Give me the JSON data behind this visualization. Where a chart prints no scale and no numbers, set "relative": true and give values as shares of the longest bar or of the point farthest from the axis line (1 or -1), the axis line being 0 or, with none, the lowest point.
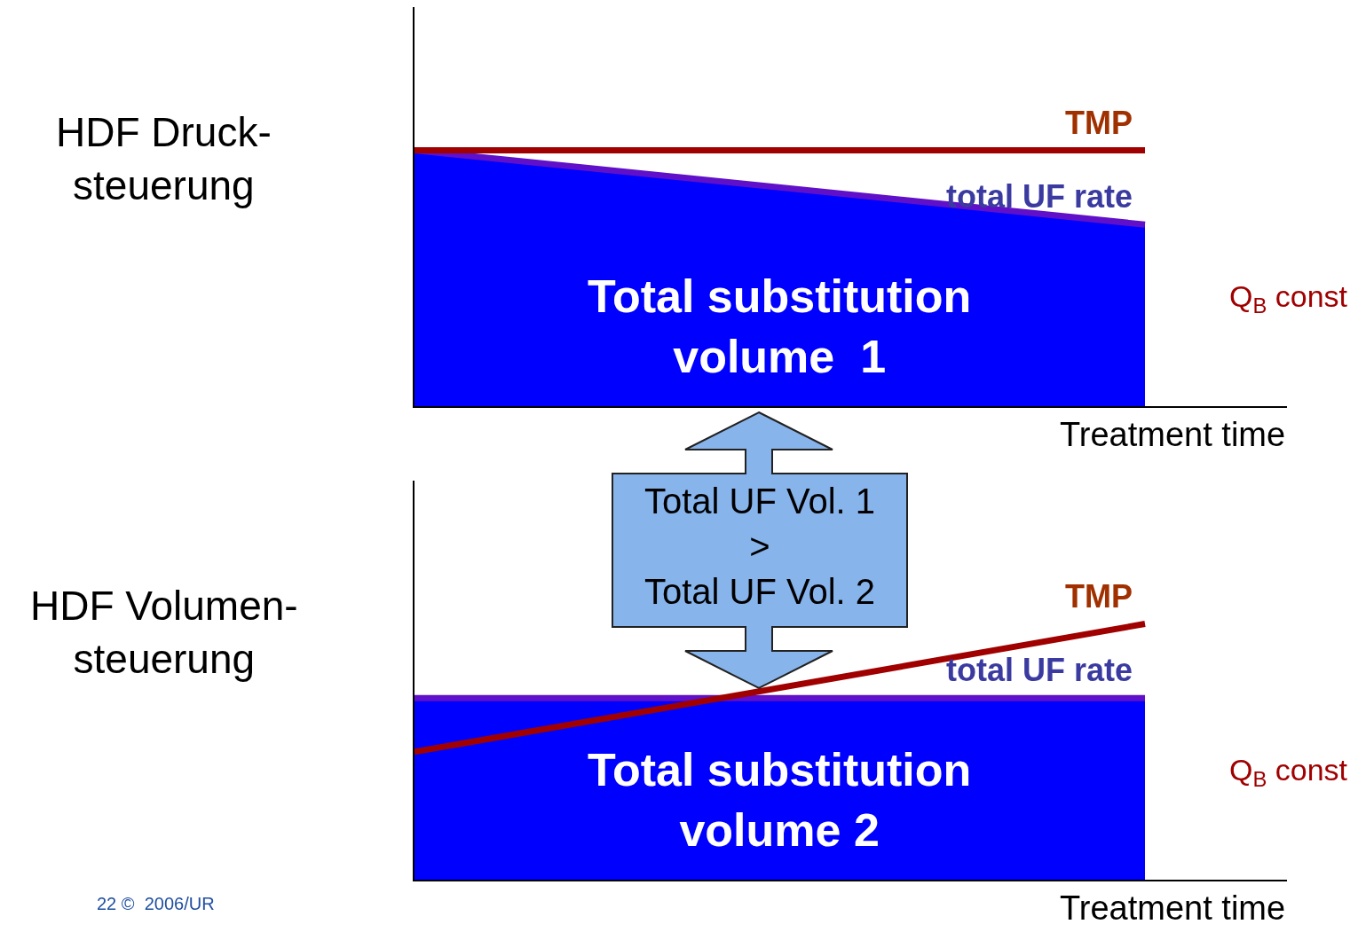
{
  "chart_data": [
    {
      "type": "area",
      "relative": true,
      "ylabel": "HDF Druck-\nsteuerung",
      "xlabel": "Treatment time",
      "categories": [
        null,
        null
      ],
      "series": [
        {
          "name": "total UF rate",
          "type": "area",
          "color": "#0000ff",
          "values": [
            1,
            0.71
          ]
        },
        {
          "name": "TMP",
          "type": "line",
          "color": "#a00000",
          "values": [
            1,
            1
          ]
        }
      ],
      "annotations": [
        "Total substitution\nvolume  1",
        "Q$_{B}$ const",
        "Total UF Vol. 1\n>\nTotal UF Vol. 2"
      ]
    },
    {
      "type": "area",
      "relative": true,
      "ylabel": "HDF Volumen-\nsteuerung",
      "xlabel": "Treatment time",
      "categories": [
        null,
        null
      ],
      "series": [
        {
          "name": "total UF rate",
          "type": "area",
          "color": "#0000ff",
          "values": [
            0.71,
            0.71
          ]
        },
        {
          "name": "TMP",
          "type": "line",
          "color": "#a00000",
          "values": [
            0.5,
            1
          ]
        }
      ],
      "annotations": [
        "Total substitution\nvolume 2",
        "Q$_{B}$ const",
        "22 ©  2006/UR"
      ]
    }
  ]
}
